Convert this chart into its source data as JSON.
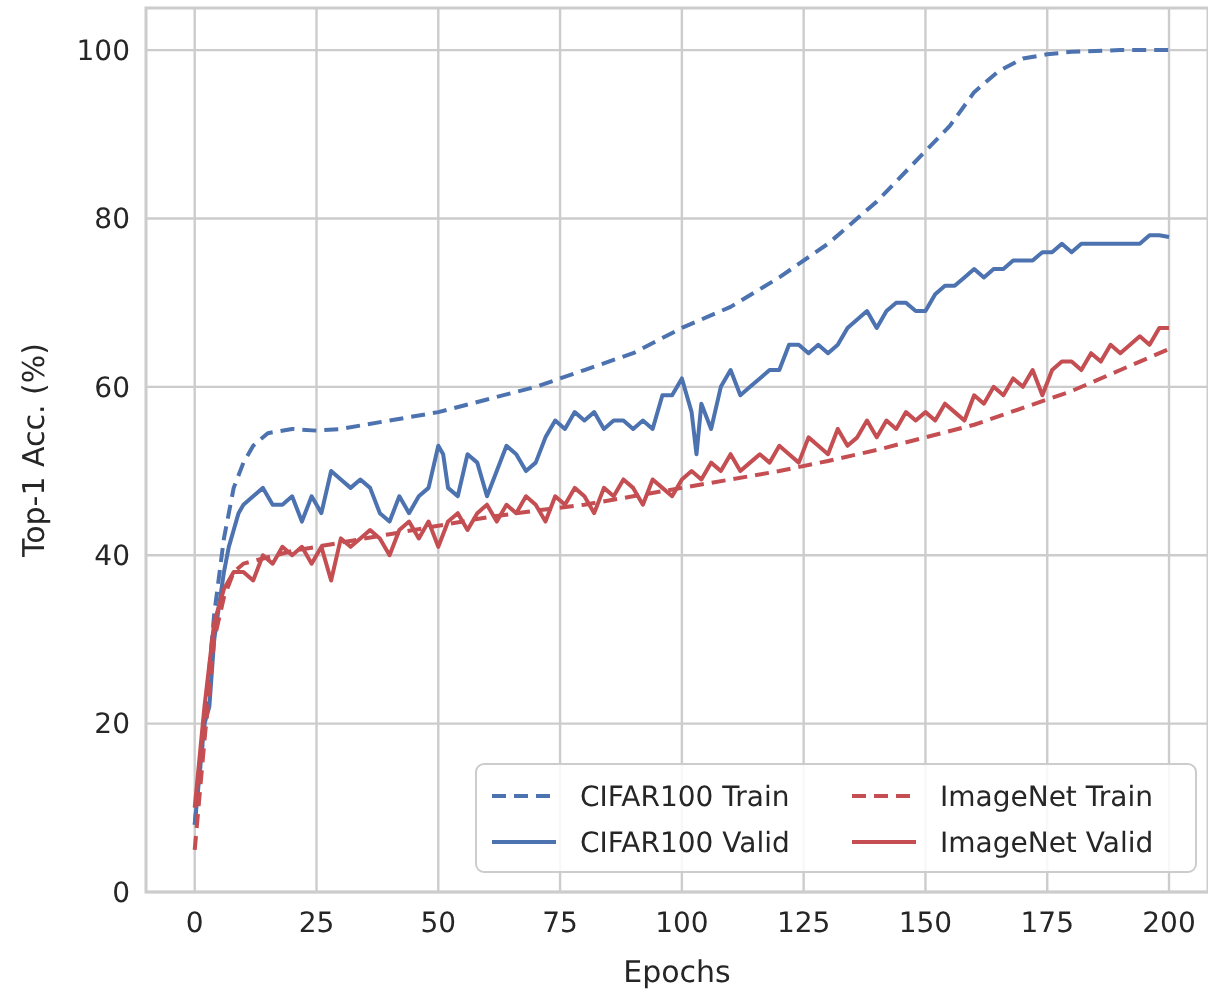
{
  "chart_data": {
    "type": "line",
    "xlabel": "Epochs",
    "ylabel": "Top-1 Acc. (%)",
    "xlim": [
      -10,
      208
    ],
    "ylim": [
      0,
      105
    ],
    "xticks": [
      0,
      25,
      50,
      75,
      100,
      125,
      150,
      175,
      200
    ],
    "yticks": [
      0,
      20,
      40,
      60,
      80,
      100
    ],
    "grid": true,
    "legend": "bottom right",
    "series": [
      {
        "name": "CIFAR100 Train",
        "color": "#4c72b0",
        "line_style": "dashed",
        "x": [
          0,
          2,
          4,
          6,
          8,
          10,
          12,
          15,
          20,
          25,
          30,
          35,
          40,
          50,
          60,
          70,
          80,
          90,
          100,
          110,
          120,
          130,
          140,
          150,
          155,
          160,
          165,
          170,
          175,
          180,
          190,
          200
        ],
        "values": [
          8,
          20,
          33,
          42,
          48,
          51,
          53,
          54.5,
          55,
          54.8,
          55,
          55.5,
          56,
          57,
          58.5,
          60,
          62,
          64,
          67,
          69.5,
          73,
          77,
          82,
          88,
          91,
          95,
          97.5,
          99,
          99.5,
          99.8,
          100,
          100
        ]
      },
      {
        "name": "CIFAR100 Valid",
        "color": "#4c72b0",
        "line_style": "solid",
        "x": [
          0,
          1,
          2,
          3,
          4,
          5,
          6,
          7,
          8,
          9,
          10,
          12,
          14,
          16,
          18,
          20,
          22,
          24,
          26,
          28,
          30,
          32,
          34,
          36,
          38,
          40,
          42,
          44,
          46,
          48,
          50,
          51,
          52,
          54,
          56,
          58,
          60,
          62,
          64,
          66,
          68,
          70,
          72,
          74,
          76,
          78,
          80,
          82,
          84,
          86,
          88,
          90,
          92,
          94,
          96,
          98,
          100,
          102,
          103,
          104,
          106,
          108,
          110,
          112,
          114,
          116,
          118,
          120,
          122,
          124,
          126,
          128,
          130,
          132,
          134,
          136,
          138,
          140,
          142,
          144,
          146,
          148,
          150,
          152,
          154,
          156,
          158,
          160,
          162,
          164,
          166,
          168,
          170,
          172,
          174,
          176,
          178,
          180,
          182,
          184,
          186,
          188,
          190,
          192,
          194,
          196,
          198,
          200
        ],
        "values": [
          8,
          14,
          20,
          22,
          30,
          34,
          38,
          41,
          43,
          45,
          46,
          47,
          48,
          46,
          46,
          47,
          44,
          47,
          45,
          50,
          49,
          48,
          49,
          48,
          45,
          44,
          47,
          45,
          47,
          48,
          53,
          52,
          48,
          47,
          52,
          51,
          47,
          50,
          53,
          52,
          50,
          51,
          54,
          56,
          55,
          57,
          56,
          57,
          55,
          56,
          56,
          55,
          56,
          55,
          59,
          59,
          61,
          57,
          52,
          58,
          55,
          60,
          62,
          59,
          60,
          61,
          62,
          62,
          65,
          65,
          64,
          65,
          64,
          65,
          67,
          68,
          69,
          67,
          69,
          70,
          70,
          69,
          69,
          71,
          72,
          72,
          73,
          74,
          73,
          74,
          74,
          75,
          75,
          75,
          76,
          76,
          77,
          76,
          77,
          77,
          77,
          77,
          77,
          77,
          77,
          78,
          78,
          77.8
        ]
      },
      {
        "name": "ImageNet Train",
        "color": "#c44e52",
        "line_style": "dashed",
        "x": [
          0,
          2,
          4,
          6,
          8,
          10,
          20,
          30,
          40,
          50,
          60,
          70,
          80,
          90,
          100,
          110,
          120,
          130,
          140,
          150,
          160,
          170,
          180,
          190,
          200
        ],
        "values": [
          5,
          18,
          30,
          35,
          38,
          39,
          40.5,
          41.5,
          42.5,
          43.5,
          44.5,
          45.3,
          46,
          47,
          48,
          49,
          50,
          51.2,
          52.5,
          54,
          55.5,
          57.5,
          59.5,
          62,
          64.5
        ]
      },
      {
        "name": "ImageNet Valid",
        "color": "#c44e52",
        "line_style": "solid",
        "x": [
          0,
          2,
          4,
          6,
          8,
          10,
          12,
          14,
          16,
          18,
          20,
          22,
          24,
          26,
          28,
          30,
          32,
          34,
          36,
          38,
          40,
          42,
          44,
          46,
          48,
          50,
          52,
          54,
          56,
          58,
          60,
          62,
          64,
          66,
          68,
          70,
          72,
          74,
          76,
          78,
          80,
          82,
          84,
          86,
          88,
          90,
          92,
          94,
          96,
          98,
          100,
          102,
          104,
          106,
          108,
          110,
          112,
          114,
          116,
          118,
          120,
          122,
          124,
          126,
          128,
          130,
          132,
          134,
          136,
          138,
          140,
          142,
          144,
          146,
          148,
          150,
          152,
          154,
          156,
          158,
          160,
          162,
          164,
          166,
          168,
          170,
          172,
          174,
          176,
          178,
          180,
          182,
          184,
          186,
          188,
          190,
          192,
          194,
          196,
          198,
          200
        ],
        "values": [
          10,
          22,
          32,
          36,
          38,
          38,
          37,
          40,
          39,
          41,
          40,
          41,
          39,
          41,
          37,
          42,
          41,
          42,
          43,
          42,
          40,
          43,
          44,
          42,
          44,
          41,
          44,
          45,
          43,
          45,
          46,
          44,
          46,
          45,
          47,
          46,
          44,
          47,
          46,
          48,
          47,
          45,
          48,
          47,
          49,
          48,
          46,
          49,
          48,
          47,
          49,
          50,
          49,
          51,
          50,
          52,
          50,
          51,
          52,
          51,
          53,
          52,
          51,
          54,
          53,
          52,
          55,
          53,
          54,
          56,
          54,
          56,
          55,
          57,
          56,
          57,
          56,
          58,
          57,
          56,
          59,
          58,
          60,
          59,
          61,
          60,
          62,
          59,
          62,
          63,
          63,
          62,
          64,
          63,
          65,
          64,
          65,
          66,
          65,
          67,
          67
        ]
      }
    ]
  }
}
